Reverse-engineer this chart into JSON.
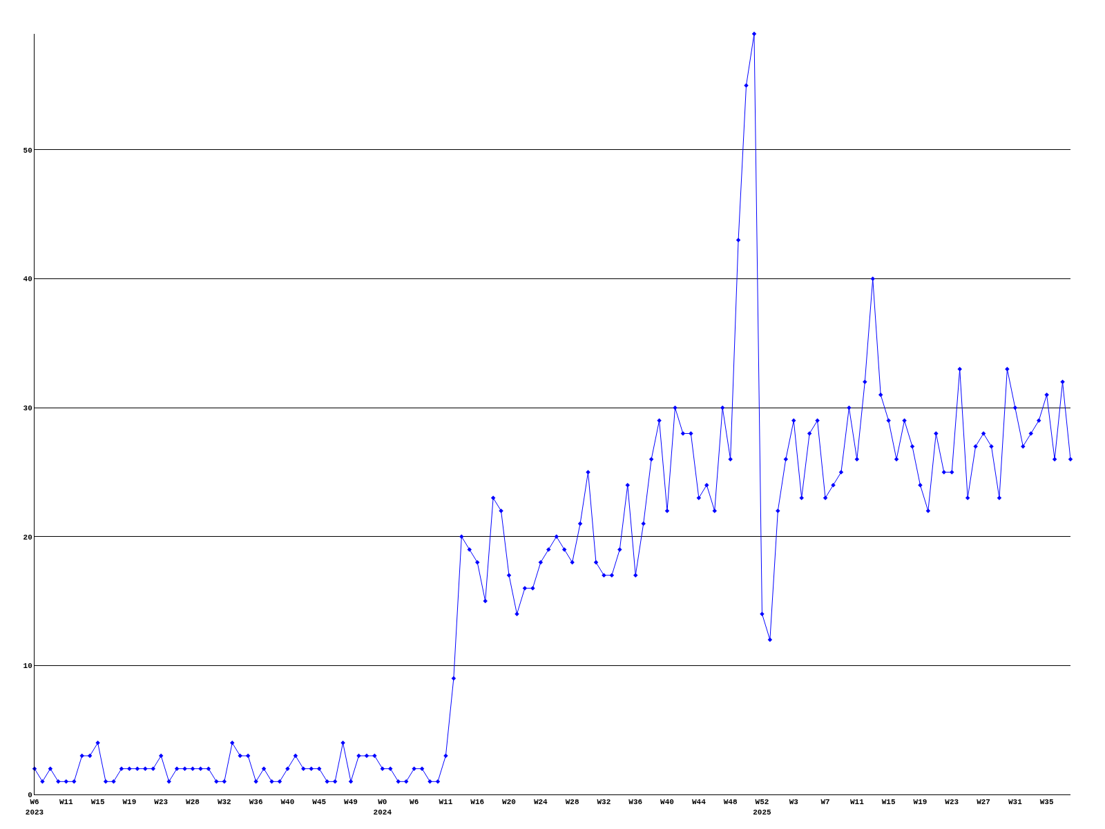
{
  "chart_data": {
    "type": "line",
    "categories": [
      "W6\n2023",
      null,
      null,
      null,
      "W11",
      null,
      null,
      null,
      "W15",
      null,
      null,
      null,
      "W19",
      null,
      null,
      null,
      "W23",
      null,
      null,
      null,
      "W28",
      null,
      null,
      null,
      "W32",
      null,
      null,
      null,
      "W36",
      null,
      null,
      null,
      "W40",
      null,
      null,
      null,
      "W45",
      null,
      null,
      null,
      "W49",
      null,
      null,
      null,
      "W0\n2024",
      null,
      null,
      null,
      "W6",
      null,
      null,
      null,
      "W11",
      null,
      null,
      null,
      "W16",
      null,
      null,
      null,
      "W20",
      null,
      null,
      null,
      "W24",
      null,
      null,
      null,
      "W28",
      null,
      null,
      null,
      "W32",
      null,
      null,
      null,
      "W36",
      null,
      null,
      null,
      "W40",
      null,
      null,
      null,
      "W44",
      null,
      null,
      null,
      "W48",
      null,
      null,
      null,
      "W52\n2025",
      null,
      null,
      null,
      "W3",
      null,
      null,
      null,
      "W7",
      null,
      null,
      null,
      "W11",
      null,
      null,
      null,
      "W15",
      null,
      null,
      null,
      "W19",
      null,
      null,
      null,
      "W23",
      null,
      null,
      null,
      "W27",
      null,
      null,
      null,
      "W31",
      null,
      null,
      null,
      "W35",
      null,
      null,
      null
    ],
    "series": [
      {
        "color": "#0000ff",
        "values": [
          2,
          1,
          2,
          1,
          1,
          1,
          3,
          3,
          4,
          1,
          1,
          2,
          2,
          2,
          2,
          2,
          3,
          1,
          2,
          2,
          2,
          2,
          2,
          1,
          1,
          4,
          3,
          3,
          1,
          2,
          1,
          1,
          2,
          3,
          2,
          2,
          2,
          1,
          1,
          4,
          1,
          3,
          3,
          3,
          2,
          2,
          1,
          1,
          2,
          2,
          1,
          1,
          3,
          9,
          20,
          19,
          18,
          15,
          23,
          22,
          17,
          14,
          16,
          16,
          18,
          19,
          20,
          19,
          18,
          21,
          25,
          18,
          17,
          17,
          19,
          24,
          17,
          21,
          26,
          29,
          22,
          30,
          28,
          28,
          23,
          24,
          22,
          30,
          26,
          43,
          55,
          59,
          14,
          12,
          22,
          26,
          29,
          23,
          28,
          29,
          23,
          24,
          25,
          30,
          26,
          32,
          40,
          31,
          29,
          26,
          29,
          27,
          24,
          22,
          28,
          25,
          25,
          33,
          23,
          27,
          28,
          27,
          23,
          33,
          30,
          27,
          28,
          29,
          31,
          26,
          32,
          26
        ]
      }
    ],
    "ylim": [
      0,
      59
    ],
    "yticks": [
      0,
      10,
      20,
      30,
      40,
      50
    ],
    "grid": "y",
    "marker": "diamond",
    "line_style": "solid"
  }
}
